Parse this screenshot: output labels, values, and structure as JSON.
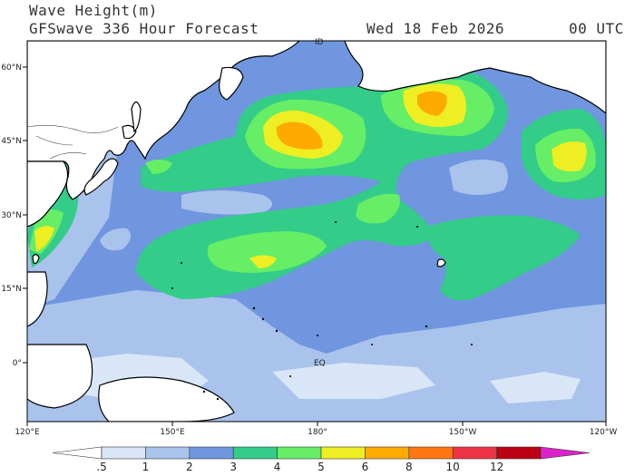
{
  "header": {
    "title": "Wave Height(m)",
    "model_line": "GFSwave 336 Hour Forecast",
    "date": "Wed 18 Feb 2026",
    "time": "00 UTC"
  },
  "map": {
    "lat_labels": [
      "60°N",
      "45°N",
      "30°N",
      "15°N",
      "0°"
    ],
    "lon_labels": [
      "120°E",
      "150°E",
      "180°",
      "150°W",
      "120°W"
    ],
    "annotations": [
      "ID",
      "EQ"
    ]
  },
  "colorbar": {
    "labels": [
      ".5",
      "1",
      "2",
      "3",
      "4",
      "5",
      "6",
      "8",
      "10",
      "12"
    ],
    "colors": [
      "#ffffff",
      "#d9e6f7",
      "#a9c3ec",
      "#6f96de",
      "#33cc88",
      "#66ee66",
      "#eeee22",
      "#ffaa00",
      "#ff7711",
      "#ee3344",
      "#bb0011",
      "#dd22cc"
    ]
  },
  "fill_colors": {
    "land": "#ffffff",
    "ocean_low": "#a9c3ec",
    "ocean_mid": "#6f96de",
    "band_3_4": "#33cc88",
    "band_4_5": "#66ee66",
    "band_5_6": "#eeee22",
    "band_6_8": "#ffaa00",
    "band_8_10": "#ff7711"
  }
}
